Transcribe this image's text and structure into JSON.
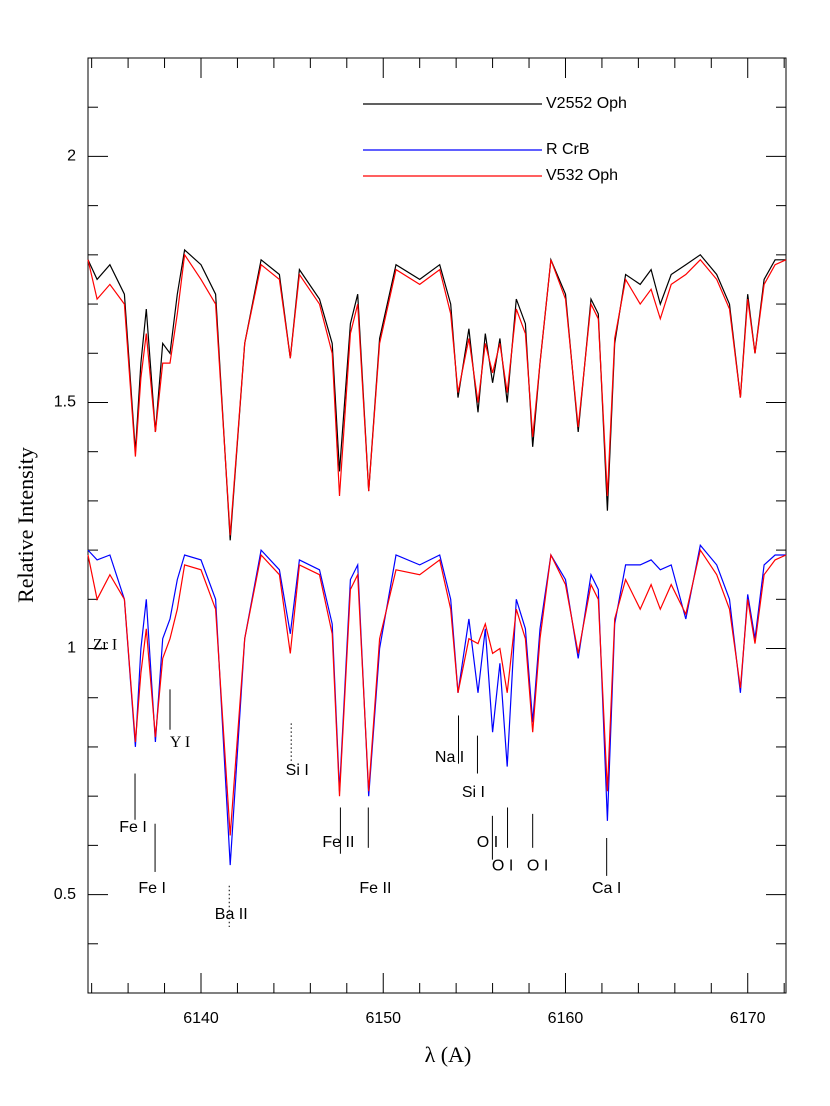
{
  "chart_data": {
    "type": "line",
    "x_label": "λ (A)",
    "y_label": "Relative Intensity",
    "xlim": [
      6133.8,
      6172.1
    ],
    "ylim": [
      0.3,
      2.2
    ],
    "xticks": [
      6140,
      6150,
      6160,
      6170
    ],
    "yticks": [
      0.5,
      1,
      1.5,
      2
    ],
    "xminorticks": [
      6134,
      6136,
      6138,
      6142,
      6144,
      6146,
      6148,
      6152,
      6154,
      6156,
      6158,
      6162,
      6164,
      6166,
      6168,
      6172
    ],
    "yminorticks": [
      0.4,
      0.6,
      0.7,
      0.8,
      0.9,
      1.1,
      1.2,
      1.3,
      1.4,
      1.6,
      1.7,
      1.8,
      1.9,
      2.1
    ],
    "x": [
      6133.8,
      6134.3,
      6135.0,
      6135.8,
      6136.4,
      6136.7,
      6137.0,
      6137.5,
      6137.9,
      6138.3,
      6138.7,
      6139.1,
      6140.0,
      6140.8,
      6141.6,
      6142.4,
      6143.3,
      6144.3,
      6144.9,
      6145.4,
      6146.5,
      6147.2,
      6147.6,
      6148.2,
      6148.6,
      6149.2,
      6149.8,
      6150.7,
      6152.0,
      6153.1,
      6153.7,
      6154.1,
      6154.7,
      6155.2,
      6155.6,
      6156.0,
      6156.4,
      6156.8,
      6157.3,
      6157.8,
      6158.2,
      6158.6,
      6159.2,
      6160.0,
      6160.7,
      6161.4,
      6161.8,
      6162.3,
      6162.7,
      6163.3,
      6164.1,
      6164.7,
      6165.2,
      6165.8,
      6166.6,
      6167.4,
      6168.3,
      6169.0,
      6169.6,
      6170.0,
      6170.4,
      6170.9,
      6171.5,
      6172.1
    ],
    "series": [
      {
        "name": "V2552 Oph",
        "color": "#000000",
        "values": [
          1.79,
          1.75,
          1.78,
          1.72,
          1.4,
          1.58,
          1.69,
          1.44,
          1.62,
          1.6,
          1.72,
          1.81,
          1.78,
          1.72,
          1.22,
          1.62,
          1.79,
          1.76,
          1.59,
          1.77,
          1.71,
          1.62,
          1.36,
          1.66,
          1.72,
          1.32,
          1.63,
          1.78,
          1.75,
          1.78,
          1.7,
          1.51,
          1.65,
          1.48,
          1.64,
          1.54,
          1.63,
          1.5,
          1.71,
          1.66,
          1.41,
          1.58,
          1.79,
          1.72,
          1.44,
          1.71,
          1.68,
          1.28,
          1.62,
          1.76,
          1.74,
          1.77,
          1.7,
          1.76,
          1.78,
          1.8,
          1.76,
          1.7,
          1.51,
          1.72,
          1.6,
          1.75,
          1.79,
          1.79
        ]
      },
      {
        "name": "R CrB",
        "color": "#0000ff",
        "values": [
          1.2,
          1.18,
          1.19,
          1.1,
          0.8,
          1.0,
          1.1,
          0.81,
          1.02,
          1.06,
          1.14,
          1.19,
          1.18,
          1.1,
          0.56,
          1.02,
          1.2,
          1.16,
          1.03,
          1.18,
          1.16,
          1.05,
          0.71,
          1.14,
          1.17,
          0.7,
          1.0,
          1.19,
          1.17,
          1.19,
          1.1,
          0.91,
          1.06,
          0.91,
          1.04,
          0.83,
          0.97,
          0.76,
          1.1,
          1.04,
          0.85,
          1.04,
          1.19,
          1.14,
          0.98,
          1.15,
          1.12,
          0.65,
          1.05,
          1.17,
          1.17,
          1.18,
          1.16,
          1.17,
          1.06,
          1.21,
          1.17,
          1.1,
          0.91,
          1.11,
          1.02,
          1.17,
          1.19,
          1.19
        ]
      },
      {
        "name": "V532 Oph",
        "color": "#ff0000",
        "values": [
          1.79,
          1.71,
          1.74,
          1.7,
          1.39,
          1.55,
          1.64,
          1.44,
          1.58,
          1.58,
          1.68,
          1.8,
          1.75,
          1.7,
          1.23,
          1.62,
          1.78,
          1.75,
          1.59,
          1.76,
          1.7,
          1.6,
          1.31,
          1.64,
          1.7,
          1.32,
          1.62,
          1.77,
          1.74,
          1.77,
          1.68,
          1.52,
          1.63,
          1.5,
          1.62,
          1.56,
          1.62,
          1.52,
          1.69,
          1.64,
          1.43,
          1.58,
          1.79,
          1.71,
          1.45,
          1.7,
          1.67,
          1.31,
          1.63,
          1.75,
          1.7,
          1.73,
          1.67,
          1.74,
          1.76,
          1.79,
          1.75,
          1.69,
          1.51,
          1.71,
          1.6,
          1.74,
          1.78,
          1.79
        ]
      },
      {
        "color": "#ff0000",
        "values": [
          1.19,
          1.1,
          1.15,
          1.1,
          0.81,
          0.95,
          1.04,
          0.82,
          0.98,
          1.02,
          1.08,
          1.17,
          1.16,
          1.08,
          0.62,
          1.02,
          1.19,
          1.15,
          0.99,
          1.17,
          1.15,
          1.03,
          0.7,
          1.12,
          1.15,
          0.71,
          1.02,
          1.16,
          1.15,
          1.18,
          1.08,
          0.91,
          1.02,
          1.01,
          1.05,
          0.99,
          1.0,
          0.91,
          1.08,
          1.02,
          0.83,
          1.02,
          1.19,
          1.13,
          0.99,
          1.13,
          1.1,
          0.71,
          1.06,
          1.14,
          1.08,
          1.13,
          1.08,
          1.13,
          1.07,
          1.2,
          1.15,
          1.08,
          0.92,
          1.1,
          1.01,
          1.15,
          1.18,
          1.19
        ]
      }
    ],
    "annotations": [
      {
        "text": "Zr I",
        "x": 6134.73,
        "y": 1.005
      },
      {
        "text": "Y I",
        "x": 6138.85,
        "y": 0.807,
        "line_x": 6138.3,
        "line_y": [
          0.917,
          0.835
        ]
      },
      {
        "text": "Fe I",
        "x": 6136.27,
        "y": 0.636,
        "line_x": 6136.38,
        "line_y": [
          0.746,
          0.652
        ]
      },
      {
        "text": "Fe I",
        "x": 6137.32,
        "y": 0.512,
        "line_x": 6137.48,
        "line_y": [
          0.644,
          0.546
        ]
      },
      {
        "text": "Ba II",
        "x": 6141.66,
        "y": 0.459,
        "line_x": 6141.55,
        "line_y": [
          0.518,
          0.434
        ],
        "dotted": true
      },
      {
        "text": "Si I",
        "x": 6145.28,
        "y": 0.752,
        "line_x": 6144.95,
        "line_y": [
          0.848,
          0.766
        ],
        "dotted": true
      },
      {
        "text": "Fe II",
        "x": 6147.54,
        "y": 0.605,
        "line_x": 6147.65,
        "line_y": [
          0.677,
          0.583
        ]
      },
      {
        "text": "Fe II",
        "x": 6149.57,
        "y": 0.512,
        "line_x": 6149.18,
        "line_y": [
          0.677,
          0.595
        ]
      },
      {
        "text": "Na I",
        "x": 6153.64,
        "y": 0.778,
        "line_x": 6154.13,
        "line_y": [
          0.864,
          0.766
        ]
      },
      {
        "text": "Si I",
        "x": 6154.95,
        "y": 0.707,
        "line_x": 6155.17,
        "line_y": [
          0.823,
          0.746
        ]
      },
      {
        "text": "O I",
        "x": 6155.72,
        "y": 0.605,
        "line_x": 6155.99,
        "line_y": [
          0.66,
          0.571
        ]
      },
      {
        "text": "O I",
        "x": 6156.55,
        "y": 0.558,
        "line_x": 6156.82,
        "line_y": [
          0.677,
          0.595
        ]
      },
      {
        "text": "O I",
        "x": 6158.47,
        "y": 0.558,
        "line_x": 6158.2,
        "line_y": [
          0.664,
          0.595
        ]
      },
      {
        "text": "Ca I",
        "x": 6162.26,
        "y": 0.512,
        "line_x": 6162.26,
        "line_y": [
          0.615,
          0.538
        ]
      }
    ]
  }
}
